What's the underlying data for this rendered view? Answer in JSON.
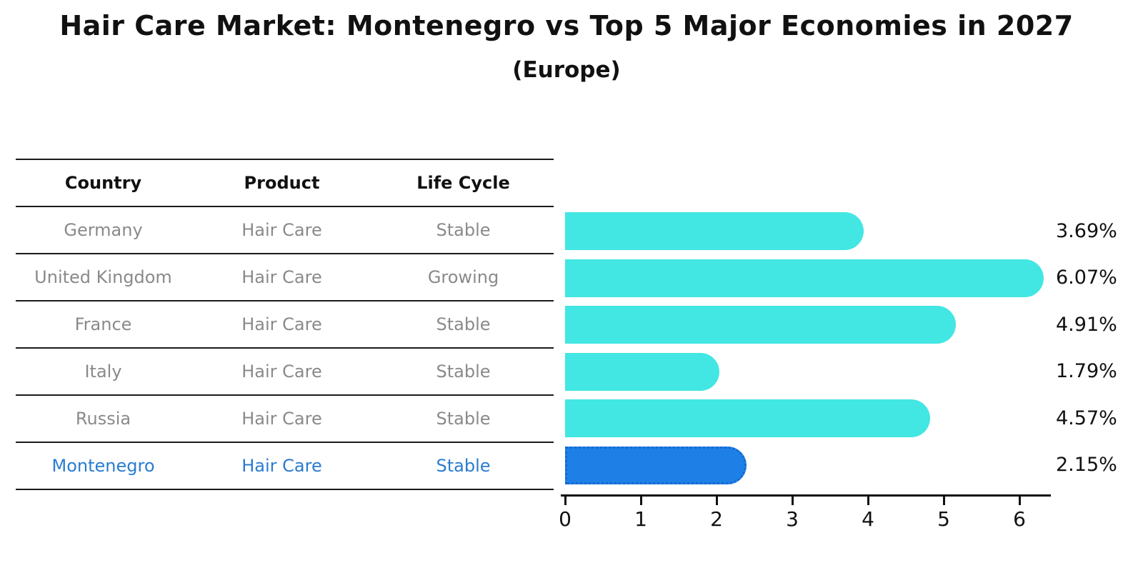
{
  "title": "Hair Care Market: Montenegro vs Top 5 Major Economies in 2027",
  "subtitle": "(Europe)",
  "table": {
    "headers": [
      "Country",
      "Product",
      "Life Cycle"
    ],
    "rows": [
      {
        "country": "Germany",
        "product": "Hair Care",
        "life_cycle": "Stable",
        "highlight": false
      },
      {
        "country": "United Kingdom",
        "product": "Hair Care",
        "life_cycle": "Growing",
        "highlight": false
      },
      {
        "country": "France",
        "product": "Hair Care",
        "life_cycle": "Stable",
        "highlight": false
      },
      {
        "country": "Italy",
        "product": "Hair Care",
        "life_cycle": "Stable",
        "highlight": false
      },
      {
        "country": "Russia",
        "product": "Hair Care",
        "life_cycle": "Stable",
        "highlight": false
      },
      {
        "country": "Montenegro",
        "product": "Hair Care",
        "life_cycle": "Stable",
        "highlight": true
      }
    ]
  },
  "chart_data": {
    "type": "bar",
    "orientation": "horizontal",
    "title": "Hair Care Market: Montenegro vs Top 5 Major Economies in 2027 (Europe)",
    "categories": [
      "Germany",
      "United Kingdom",
      "France",
      "Italy",
      "Russia",
      "Montenegro"
    ],
    "values": [
      3.69,
      6.07,
      4.91,
      1.79,
      4.57,
      2.15
    ],
    "value_labels": [
      "3.69%",
      "6.07%",
      "4.91%",
      "1.79%",
      "4.57%",
      "2.15%"
    ],
    "x_ticks": [
      "0",
      "1",
      "2",
      "3",
      "4",
      "5",
      "6"
    ],
    "xlim": [
      0,
      6.4
    ],
    "xlabel": "",
    "ylabel": "",
    "grid": false,
    "legend": "none",
    "bar_color": "#42e6e3",
    "highlight_bar_color": "#1e80e6",
    "highlight_index": 5,
    "highlight_text_color": "#2a7cd0"
  }
}
